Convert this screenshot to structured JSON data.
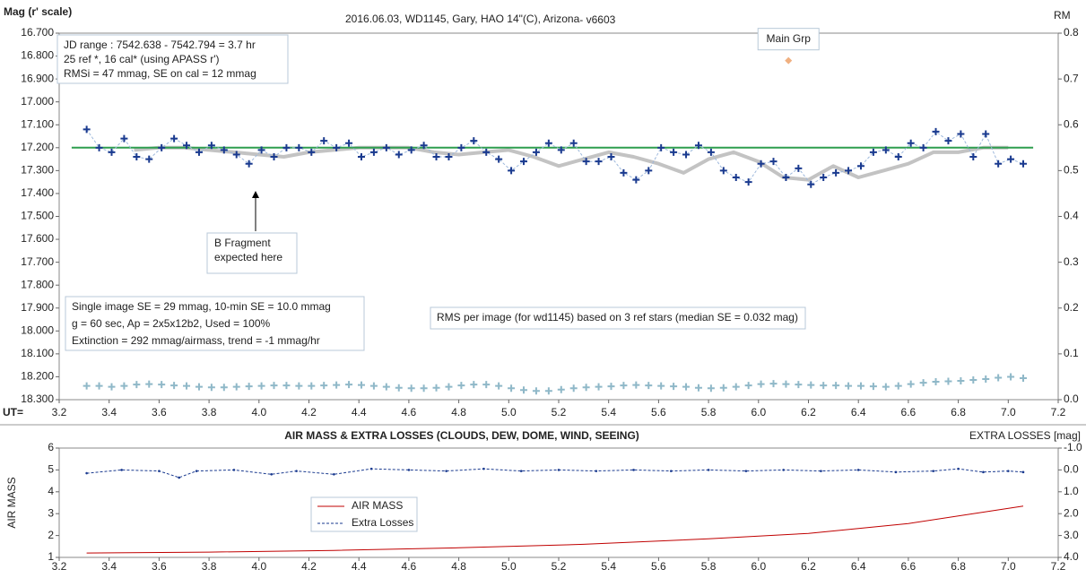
{
  "chart_data": [
    {
      "type": "line",
      "title": "2016.06.03,  WD1145, Gary, HAO  14\"(C), Arizona",
      "subtitle": " - v6603",
      "y_label": "Mag (r' scale)",
      "y2_label": "RM",
      "x_label": "UT=",
      "xlim": [
        3.2,
        7.2
      ],
      "xticks": [
        3.2,
        3.4,
        3.6,
        3.8,
        {
          "value": 4.0,
          "label": "4.0"
        },
        4.2,
        4.4,
        4.6,
        4.8,
        {
          "value": 5.0,
          "label": "5.0"
        },
        5.2,
        5.4,
        5.6,
        5.8,
        {
          "value": 6.0,
          "label": "6.0"
        },
        6.2,
        6.4,
        6.6,
        6.8,
        {
          "value": 7.0,
          "label": "7.0"
        },
        7.2
      ],
      "ylim": [
        18.3,
        16.7
      ],
      "yticks": [
        {
          "value": 16.7,
          "label": "16.700"
        },
        {
          "value": 16.8,
          "label": "16.800"
        },
        {
          "value": 16.9,
          "label": "16.900"
        },
        {
          "value": 17.0,
          "label": "17.000"
        },
        {
          "value": 17.1,
          "label": "17.100"
        },
        {
          "value": 17.2,
          "label": "17.200"
        },
        {
          "value": 17.3,
          "label": "17.300"
        },
        {
          "value": 17.4,
          "label": "17.400"
        },
        {
          "value": 17.5,
          "label": "17.500"
        },
        {
          "value": 17.6,
          "label": "17.600"
        },
        {
          "value": 17.7,
          "label": "17.700"
        },
        {
          "value": 17.8,
          "label": "17.800"
        },
        {
          "value": 17.9,
          "label": "17.900"
        },
        {
          "value": 18.0,
          "label": "18.000"
        },
        {
          "value": 18.1,
          "label": "18.100"
        },
        {
          "value": 18.2,
          "label": "18.200"
        },
        {
          "value": 18.3,
          "label": "18.300"
        }
      ],
      "y2lim": [
        0,
        0.8
      ],
      "y2ticks": [
        {
          "value": 0,
          "label": "0.0"
        },
        0.1,
        0.2,
        0.3,
        0.4,
        0.5,
        0.6,
        0.7,
        0.8
      ],
      "grid": false,
      "notes": [
        [
          "JD range  : 7542.638  - 7542.794  = 3.7 hr",
          "  25 ref *, 16 cal* (using APASS r')",
          "RMSi = 47 mmag, SE on cal = 12 mmag"
        ],
        [
          "B Fragment",
          "expected here"
        ],
        [
          "Single image SE = 29 mmag, 10-min SE = 10.0 mmag",
          "g = 60 sec, Ap = 2x5x12b2, Used = 100%",
          "Extinction = 292 mmag/airmass, trend = -1 mmag/hr"
        ],
        [
          "RMS per image (for wd1145) based on 3 ref stars (median SE = 0.032 mag)"
        ]
      ],
      "series": [
        {
          "color": "#c3c3c3",
          "width": 4,
          "marker": "none",
          "dash": false,
          "x": [
            3.5,
            3.6,
            3.7,
            3.8,
            3.9,
            4.0,
            4.1,
            4.2,
            4.3,
            4.4,
            4.5,
            4.6,
            4.7,
            4.8,
            4.9,
            5.0,
            5.1,
            5.2,
            5.3,
            5.4,
            5.5,
            5.6,
            5.7,
            5.8,
            5.9,
            6.0,
            6.1,
            6.2,
            6.3,
            6.4,
            6.5,
            6.6,
            6.7,
            6.8,
            6.9,
            7.0
          ],
          "values": [
            17.21,
            17.2,
            17.2,
            17.21,
            17.22,
            17.23,
            17.24,
            17.22,
            17.21,
            17.2,
            17.2,
            17.2,
            17.22,
            17.23,
            17.22,
            17.21,
            17.24,
            17.28,
            17.25,
            17.22,
            17.24,
            17.27,
            17.31,
            17.25,
            17.22,
            17.26,
            17.33,
            17.34,
            17.28,
            17.33,
            17.3,
            17.27,
            17.22,
            17.22,
            17.2,
            17.2
          ]
        },
        {
          "color": "#2e9e4f",
          "width": 2,
          "marker": "none",
          "dash": false,
          "x": [
            3.25,
            7.1
          ],
          "values": [
            17.2,
            17.2
          ]
        },
        {
          "color": "#1a3a8f",
          "line_color": "#9db8dc",
          "width": 1,
          "marker": "plus",
          "dash": true,
          "x": [
            3.31,
            3.36,
            3.41,
            3.46,
            3.51,
            3.56,
            3.61,
            3.66,
            3.71,
            3.76,
            3.81,
            3.86,
            3.91,
            3.96,
            4.01,
            4.06,
            4.11,
            4.16,
            4.21,
            4.26,
            4.31,
            4.36,
            4.41,
            4.46,
            4.51,
            4.56,
            4.61,
            4.66,
            4.71,
            4.76,
            4.81,
            4.86,
            4.91,
            4.96,
            5.01,
            5.06,
            5.11,
            5.16,
            5.21,
            5.26,
            5.31,
            5.36,
            5.41,
            5.46,
            5.51,
            5.56,
            5.61,
            5.66,
            5.71,
            5.76,
            5.81,
            5.86,
            5.91,
            5.96,
            6.01,
            6.06,
            6.11,
            6.16,
            6.21,
            6.26,
            6.31,
            6.36,
            6.41,
            6.46,
            6.51,
            6.56,
            6.61,
            6.66,
            6.71,
            6.76,
            6.81,
            6.86,
            6.91,
            6.96,
            7.01,
            7.06
          ],
          "values": [
            17.12,
            17.2,
            17.22,
            17.16,
            17.24,
            17.25,
            17.2,
            17.16,
            17.19,
            17.22,
            17.19,
            17.21,
            17.23,
            17.27,
            17.21,
            17.24,
            17.2,
            17.2,
            17.22,
            17.17,
            17.2,
            17.18,
            17.24,
            17.22,
            17.2,
            17.23,
            17.21,
            17.19,
            17.24,
            17.24,
            17.2,
            17.17,
            17.22,
            17.25,
            17.3,
            17.26,
            17.22,
            17.18,
            17.21,
            17.18,
            17.26,
            17.26,
            17.24,
            17.31,
            17.34,
            17.3,
            17.2,
            17.22,
            17.23,
            17.19,
            17.22,
            17.3,
            17.33,
            17.35,
            17.27,
            17.26,
            17.33,
            17.29,
            17.36,
            17.33,
            17.31,
            17.3,
            17.28,
            17.22,
            17.21,
            17.24,
            17.18,
            17.2,
            17.13,
            17.17,
            17.14,
            17.24,
            17.14,
            17.27,
            17.25,
            17.27
          ]
        },
        {
          "axis": "y2",
          "color": "#8fb8c8",
          "width": 1,
          "marker": "plus",
          "dash": false,
          "line": false,
          "x": [
            3.31,
            3.36,
            3.41,
            3.46,
            3.51,
            3.56,
            3.61,
            3.66,
            3.71,
            3.76,
            3.81,
            3.86,
            3.91,
            3.96,
            4.01,
            4.06,
            4.11,
            4.16,
            4.21,
            4.26,
            4.31,
            4.36,
            4.41,
            4.46,
            4.51,
            4.56,
            4.61,
            4.66,
            4.71,
            4.76,
            4.81,
            4.86,
            4.91,
            4.96,
            5.01,
            5.06,
            5.11,
            5.16,
            5.21,
            5.26,
            5.31,
            5.36,
            5.41,
            5.46,
            5.51,
            5.56,
            5.61,
            5.66,
            5.71,
            5.76,
            5.81,
            5.86,
            5.91,
            5.96,
            6.01,
            6.06,
            6.11,
            6.16,
            6.21,
            6.26,
            6.31,
            6.36,
            6.41,
            6.46,
            6.51,
            6.56,
            6.61,
            6.66,
            6.71,
            6.76,
            6.81,
            6.86,
            6.91,
            6.96,
            7.01,
            7.06
          ],
          "values": [
            0.03,
            0.03,
            0.028,
            0.03,
            0.033,
            0.034,
            0.033,
            0.031,
            0.03,
            0.028,
            0.027,
            0.027,
            0.028,
            0.029,
            0.03,
            0.031,
            0.031,
            0.03,
            0.03,
            0.031,
            0.032,
            0.033,
            0.032,
            0.03,
            0.028,
            0.026,
            0.025,
            0.025,
            0.026,
            0.028,
            0.031,
            0.033,
            0.033,
            0.03,
            0.025,
            0.021,
            0.019,
            0.019,
            0.022,
            0.025,
            0.027,
            0.028,
            0.029,
            0.031,
            0.032,
            0.031,
            0.03,
            0.029,
            0.028,
            0.026,
            0.025,
            0.026,
            0.028,
            0.031,
            0.034,
            0.035,
            0.034,
            0.033,
            0.032,
            0.031,
            0.031,
            0.03,
            0.03,
            0.029,
            0.028,
            0.03,
            0.034,
            0.037,
            0.039,
            0.04,
            0.041,
            0.043,
            0.045,
            0.048,
            0.05,
            0.047
          ]
        },
        {
          "name": "Main Grp",
          "axis": "y2",
          "color": "#f0b080",
          "width": 1,
          "marker": "diamond",
          "dash": false,
          "line": false,
          "x": [
            6.12
          ],
          "values": [
            0.74
          ]
        }
      ]
    },
    {
      "type": "line",
      "title": "AIR MASS & EXTRA LOSSES (CLOUDS, DEW, DOME, WIND, SEEING)",
      "y_label": "AIR MASS",
      "y2_label": "EXTRA LOSSES [mag]",
      "xlim": [
        3.2,
        7.2
      ],
      "xticks": [
        3.2,
        3.4,
        3.6,
        3.8,
        {
          "value": 4.0,
          "label": "4.0"
        },
        4.2,
        4.4,
        4.6,
        4.8,
        {
          "value": 5.0,
          "label": "5.0"
        },
        5.2,
        5.4,
        5.6,
        5.8,
        {
          "value": 6.0,
          "label": "6.0"
        },
        6.2,
        6.4,
        6.6,
        6.8,
        {
          "value": 7.0,
          "label": "7.0"
        },
        7.2
      ],
      "ylim": [
        1,
        6
      ],
      "yticks": [
        1,
        2,
        3,
        4,
        5,
        6
      ],
      "y2lim": [
        4.0,
        -1.0
      ],
      "y2ticks": [
        {
          "value": -1.0,
          "label": "-1.0"
        },
        {
          "value": 0.0,
          "label": "0.0"
        },
        {
          "value": 1.0,
          "label": "1.0"
        },
        {
          "value": 2.0,
          "label": "2.0"
        },
        {
          "value": 3.0,
          "label": "3.0"
        },
        {
          "value": 4.0,
          "label": "4.0"
        }
      ],
      "grid": false,
      "series": [
        {
          "name": "AIR MASS",
          "color": "#c00000",
          "width": 1,
          "marker": "none",
          "dash": false,
          "x": [
            3.31,
            3.8,
            4.3,
            4.8,
            5.3,
            5.8,
            6.2,
            6.6,
            7.06
          ],
          "values": [
            1.2,
            1.24,
            1.32,
            1.44,
            1.6,
            1.85,
            2.1,
            2.55,
            3.35
          ]
        },
        {
          "name": "Extra Losses",
          "axis": "y2",
          "color": "#1a3a8f",
          "width": 1,
          "marker": "dot",
          "dash": true,
          "x": [
            3.31,
            3.45,
            3.6,
            3.68,
            3.75,
            3.9,
            4.05,
            4.15,
            4.3,
            4.45,
            4.6,
            4.75,
            4.9,
            5.05,
            5.2,
            5.35,
            5.5,
            5.65,
            5.8,
            5.95,
            6.1,
            6.25,
            6.4,
            6.55,
            6.7,
            6.8,
            6.9,
            7.0,
            7.06
          ],
          "values": [
            0.15,
            0.0,
            0.05,
            0.35,
            0.05,
            0.0,
            0.2,
            0.05,
            0.2,
            -0.05,
            0.0,
            0.05,
            -0.05,
            0.05,
            0.0,
            0.05,
            0.0,
            0.05,
            0.0,
            0.05,
            0.0,
            0.05,
            0.0,
            0.1,
            0.05,
            -0.05,
            0.1,
            0.05,
            0.1
          ]
        }
      ]
    }
  ]
}
